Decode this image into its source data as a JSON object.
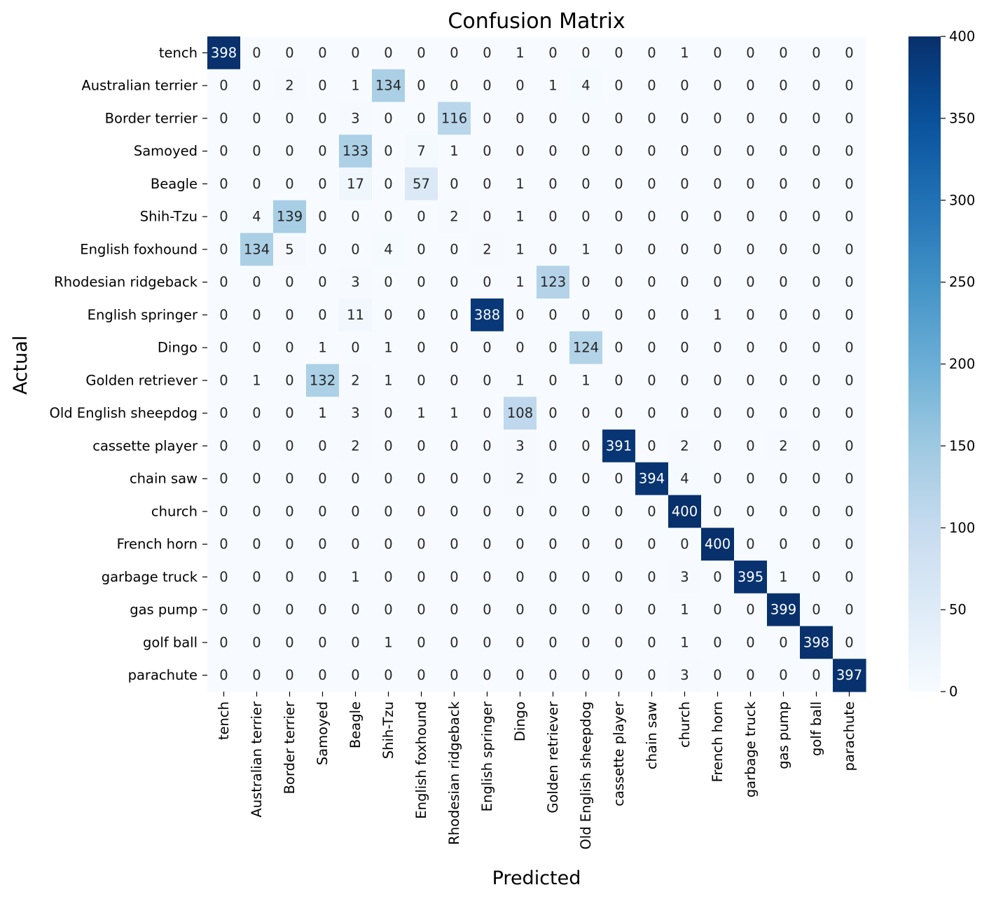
{
  "chart_data": {
    "type": "heatmap",
    "title": "Confusion Matrix",
    "xlabel": "Predicted",
    "ylabel": "Actual",
    "classes": [
      "tench",
      "Australian terrier",
      "Border terrier",
      "Samoyed",
      "Beagle",
      "Shih-Tzu",
      "English foxhound",
      "Rhodesian ridgeback",
      "English springer",
      "Dingo",
      "Golden retriever",
      "Old English sheepdog",
      "cassette player",
      "chain saw",
      "church",
      "French horn",
      "garbage truck",
      "gas pump",
      "golf ball",
      "parachute"
    ],
    "matrix": [
      [
        398,
        0,
        0,
        0,
        0,
        0,
        0,
        0,
        0,
        1,
        0,
        0,
        0,
        0,
        1,
        0,
        0,
        0,
        0,
        0
      ],
      [
        0,
        0,
        2,
        0,
        1,
        134,
        0,
        0,
        0,
        0,
        1,
        4,
        0,
        0,
        0,
        0,
        0,
        0,
        0,
        0
      ],
      [
        0,
        0,
        0,
        0,
        3,
        0,
        0,
        116,
        0,
        0,
        0,
        0,
        0,
        0,
        0,
        0,
        0,
        0,
        0,
        0
      ],
      [
        0,
        0,
        0,
        0,
        133,
        0,
        7,
        1,
        0,
        0,
        0,
        0,
        0,
        0,
        0,
        0,
        0,
        0,
        0,
        0
      ],
      [
        0,
        0,
        0,
        0,
        17,
        0,
        57,
        0,
        0,
        1,
        0,
        0,
        0,
        0,
        0,
        0,
        0,
        0,
        0,
        0
      ],
      [
        0,
        4,
        139,
        0,
        0,
        0,
        0,
        2,
        0,
        1,
        0,
        0,
        0,
        0,
        0,
        0,
        0,
        0,
        0,
        0
      ],
      [
        0,
        134,
        5,
        0,
        0,
        4,
        0,
        0,
        2,
        1,
        0,
        1,
        0,
        0,
        0,
        0,
        0,
        0,
        0,
        0
      ],
      [
        0,
        0,
        0,
        0,
        3,
        0,
        0,
        0,
        0,
        1,
        123,
        0,
        0,
        0,
        0,
        0,
        0,
        0,
        0,
        0
      ],
      [
        0,
        0,
        0,
        0,
        11,
        0,
        0,
        0,
        388,
        0,
        0,
        0,
        0,
        0,
        0,
        1,
        0,
        0,
        0,
        0
      ],
      [
        0,
        0,
        0,
        1,
        0,
        1,
        0,
        0,
        0,
        0,
        0,
        124,
        0,
        0,
        0,
        0,
        0,
        0,
        0,
        0
      ],
      [
        0,
        1,
        0,
        132,
        2,
        1,
        0,
        0,
        0,
        1,
        0,
        1,
        0,
        0,
        0,
        0,
        0,
        0,
        0,
        0
      ],
      [
        0,
        0,
        0,
        1,
        3,
        0,
        1,
        1,
        0,
        108,
        0,
        0,
        0,
        0,
        0,
        0,
        0,
        0,
        0,
        0
      ],
      [
        0,
        0,
        0,
        0,
        2,
        0,
        0,
        0,
        0,
        3,
        0,
        0,
        391,
        0,
        2,
        0,
        0,
        2,
        0,
        0
      ],
      [
        0,
        0,
        0,
        0,
        0,
        0,
        0,
        0,
        0,
        2,
        0,
        0,
        0,
        394,
        4,
        0,
        0,
        0,
        0,
        0
      ],
      [
        0,
        0,
        0,
        0,
        0,
        0,
        0,
        0,
        0,
        0,
        0,
        0,
        0,
        0,
        400,
        0,
        0,
        0,
        0,
        0
      ],
      [
        0,
        0,
        0,
        0,
        0,
        0,
        0,
        0,
        0,
        0,
        0,
        0,
        0,
        0,
        0,
        400,
        0,
        0,
        0,
        0
      ],
      [
        0,
        0,
        0,
        0,
        1,
        0,
        0,
        0,
        0,
        0,
        0,
        0,
        0,
        0,
        3,
        0,
        395,
        1,
        0,
        0
      ],
      [
        0,
        0,
        0,
        0,
        0,
        0,
        0,
        0,
        0,
        0,
        0,
        0,
        0,
        0,
        1,
        0,
        0,
        399,
        0,
        0
      ],
      [
        0,
        0,
        0,
        0,
        0,
        1,
        0,
        0,
        0,
        0,
        0,
        0,
        0,
        0,
        1,
        0,
        0,
        0,
        398,
        0
      ],
      [
        0,
        0,
        0,
        0,
        0,
        0,
        0,
        0,
        0,
        0,
        0,
        0,
        0,
        0,
        3,
        0,
        0,
        0,
        0,
        397
      ]
    ],
    "colormap": "Blues",
    "vmin": 0,
    "vmax": 400,
    "colorbar_ticks": [
      0,
      50,
      100,
      150,
      200,
      250,
      300,
      350,
      400
    ],
    "annotations": true,
    "grid": false,
    "colors": {
      "low": "#f7fbff",
      "high": "#08306b",
      "text_dark": "#262626",
      "text_light": "#ffffff"
    }
  }
}
